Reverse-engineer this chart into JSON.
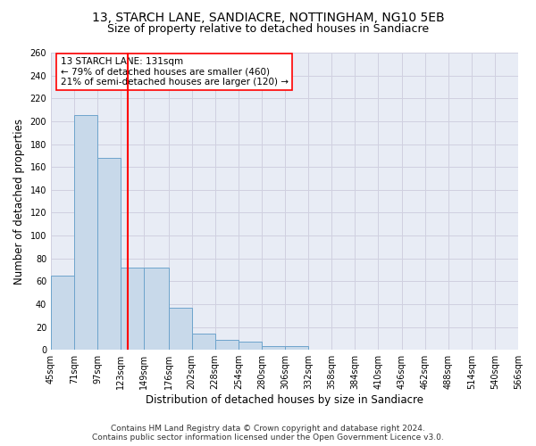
{
  "title1": "13, STARCH LANE, SANDIACRE, NOTTINGHAM, NG10 5EB",
  "title2": "Size of property relative to detached houses in Sandiacre",
  "xlabel": "Distribution of detached houses by size in Sandiacre",
  "ylabel": "Number of detached properties",
  "bin_edges": [
    45,
    71,
    97,
    123,
    149,
    176,
    202,
    228,
    254,
    280,
    306,
    332,
    358,
    384,
    410,
    436,
    462,
    488,
    514,
    540,
    566
  ],
  "bar_heights": [
    65,
    205,
    168,
    72,
    72,
    37,
    14,
    9,
    7,
    3,
    3,
    0,
    0,
    0,
    0,
    0,
    0,
    0,
    0,
    0
  ],
  "bar_color": "#c8d9ea",
  "bar_edgecolor": "#6ea4cc",
  "bar_linewidth": 0.7,
  "vline_x": 131,
  "vline_color": "red",
  "vline_linewidth": 1.5,
  "annotation_text": "13 STARCH LANE: 131sqm\n← 79% of detached houses are smaller (460)\n21% of semi-detached houses are larger (120) →",
  "annotation_box_color": "white",
  "annotation_box_edgecolor": "red",
  "ylim": [
    0,
    260
  ],
  "yticks": [
    0,
    20,
    40,
    60,
    80,
    100,
    120,
    140,
    160,
    180,
    200,
    220,
    240,
    260
  ],
  "grid_color": "#d0d0e0",
  "bg_color": "#e8ecf5",
  "footer_text": "Contains HM Land Registry data © Crown copyright and database right 2024.\nContains public sector information licensed under the Open Government Licence v3.0.",
  "title1_fontsize": 10,
  "title2_fontsize": 9,
  "xlabel_fontsize": 8.5,
  "ylabel_fontsize": 8.5,
  "tick_fontsize": 7,
  "annotation_fontsize": 7.5,
  "footer_fontsize": 6.5
}
